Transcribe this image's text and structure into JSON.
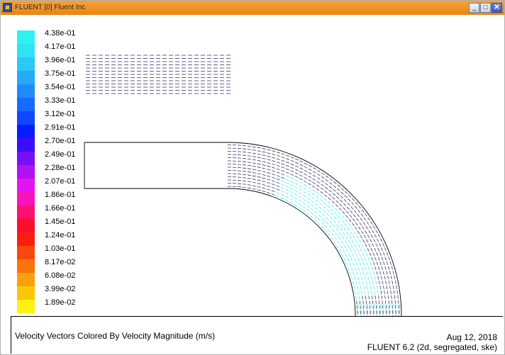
{
  "window": {
    "title": "FLUENT [0] Fluent Inc",
    "controls": {
      "minimize": "_",
      "maximize": "□",
      "close": "✕"
    }
  },
  "legend": {
    "levels": [
      {
        "label": "4.38e-01",
        "color": "#2ff1f1"
      },
      {
        "label": "4.17e-01",
        "color": "#2ee4f4"
      },
      {
        "label": "3.96e-01",
        "color": "#2cc8f6"
      },
      {
        "label": "3.75e-01",
        "color": "#26aaf8"
      },
      {
        "label": "3.54e-01",
        "color": "#1f8cfa"
      },
      {
        "label": "3.33e-01",
        "color": "#176cfc"
      },
      {
        "label": "3.12e-01",
        "color": "#0e49fd"
      },
      {
        "label": "2.91e-01",
        "color": "#0a1cff"
      },
      {
        "label": "2.70e-01",
        "color": "#3c0cfc"
      },
      {
        "label": "2.49e-01",
        "color": "#7810f6"
      },
      {
        "label": "2.28e-01",
        "color": "#b012f2"
      },
      {
        "label": "2.07e-01",
        "color": "#e214f0"
      },
      {
        "label": "1.86e-01",
        "color": "#f814b8"
      },
      {
        "label": "1.66e-01",
        "color": "#fa126e"
      },
      {
        "label": "1.45e-01",
        "color": "#fb102c"
      },
      {
        "label": "1.24e-01",
        "color": "#fa1e10"
      },
      {
        "label": "1.03e-01",
        "color": "#f9480e"
      },
      {
        "label": "8.17e-02",
        "color": "#f8740c"
      },
      {
        "label": "6.08e-02",
        "color": "#f9a00a"
      },
      {
        "label": "3.99e-02",
        "color": "#fbc808"
      },
      {
        "label": "1.89e-02",
        "color": "#fdf210"
      }
    ]
  },
  "caption": {
    "description": "Velocity Vectors Colored By Velocity Magnitude (m/s)",
    "date": "Aug 12, 2018",
    "version": "FLUENT 6.2 (2d, segregated, ske)"
  },
  "colors": {
    "vector_fast": "#2ee8f0",
    "vector_slow": "#1a1a55",
    "wall": "#000000",
    "titlebar": "#f09a2a"
  }
}
